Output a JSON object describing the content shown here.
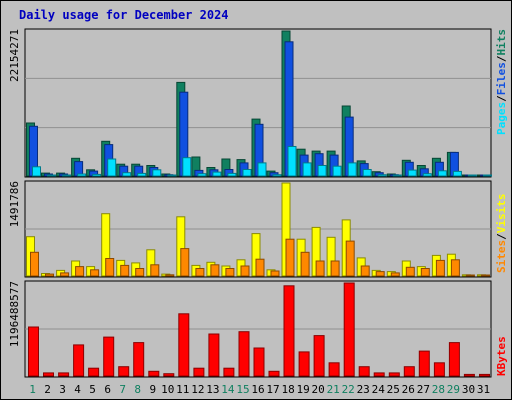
{
  "title": "Daily usage for December 2024",
  "colors": {
    "background": "#c0c0c0",
    "plot_background": "#c0c0c0",
    "pages": "#00e0ff",
    "files": "#1050e0",
    "hits": "#108060",
    "visits": "#ffff00",
    "sites": "#ff8800",
    "kbytes": "#ff0000",
    "title": "#0000c0",
    "weekend_label": "#108060",
    "weekday_label": "#000080"
  },
  "axis_max_labels": {
    "hits_panel": "22154271",
    "visits_panel": "1491786",
    "kbytes_panel": "1196488577"
  },
  "legend": {
    "pages": "Pages",
    "files": "Files",
    "hits": "Hits",
    "sites": "Sites",
    "visits": "Visits",
    "kbytes": "KBytes",
    "sep": "/"
  },
  "chart_data": [
    {
      "type": "bar",
      "title": "Daily usage for December 2024",
      "categories": [
        "1",
        "2",
        "3",
        "4",
        "5",
        "6",
        "7",
        "8",
        "9",
        "10",
        "11",
        "12",
        "13",
        "14",
        "15",
        "16",
        "17",
        "18",
        "19",
        "20",
        "21",
        "22",
        "23",
        "24",
        "25",
        "26",
        "27",
        "28",
        "29",
        "30",
        "31"
      ],
      "weekend_days": [
        "1",
        "7",
        "8",
        "14",
        "15",
        "21",
        "22",
        "28",
        "29"
      ],
      "ylim": [
        0,
        22154271
      ],
      "series": [
        {
          "name": "Hits",
          "values": [
            8100000,
            450000,
            450000,
            2700000,
            950000,
            5300000,
            1800000,
            1800000,
            1600000,
            300000,
            14300000,
            2900000,
            1300000,
            2600000,
            2500000,
            8700000,
            750000,
            22154271,
            4100000,
            3800000,
            3800000,
            10700000,
            2300000,
            650000,
            300000,
            2400000,
            1600000,
            2700000,
            3600000,
            150000,
            150000
          ]
        },
        {
          "name": "Files",
          "values": [
            7600000,
            300000,
            300000,
            2200000,
            750000,
            4800000,
            1500000,
            1500000,
            1300000,
            200000,
            12800000,
            850000,
            950000,
            1000000,
            2000000,
            7900000,
            500000,
            20500000,
            3200000,
            3400000,
            3200000,
            9000000,
            1900000,
            500000,
            200000,
            2100000,
            1100000,
            2100000,
            3600000,
            100000,
            100000
          ]
        },
        {
          "name": "Pages",
          "values": [
            1400000,
            100000,
            150000,
            300000,
            250000,
            2600000,
            500000,
            400000,
            950000,
            100000,
            2800000,
            350000,
            600000,
            400000,
            1000000,
            2000000,
            200000,
            4500000,
            2000000,
            1600000,
            1500000,
            2000000,
            1000000,
            200000,
            100000,
            900000,
            350000,
            800000,
            700000,
            50000,
            50000
          ]
        }
      ]
    },
    {
      "type": "bar",
      "categories": [
        "1",
        "2",
        "3",
        "4",
        "5",
        "6",
        "7",
        "8",
        "9",
        "10",
        "11",
        "12",
        "13",
        "14",
        "15",
        "16",
        "17",
        "18",
        "19",
        "20",
        "21",
        "22",
        "23",
        "24",
        "25",
        "26",
        "27",
        "28",
        "29",
        "30",
        "31"
      ],
      "ylim": [
        0,
        1491786
      ],
      "series": [
        {
          "name": "Visits",
          "values": [
            630000,
            40000,
            90000,
            240000,
            150000,
            1000000,
            250000,
            210000,
            420000,
            30000,
            950000,
            170000,
            220000,
            160000,
            260000,
            680000,
            100000,
            1491786,
            590000,
            780000,
            620000,
            900000,
            290000,
            90000,
            70000,
            240000,
            150000,
            330000,
            350000,
            20000,
            20000
          ]
        },
        {
          "name": "Sites",
          "values": [
            380000,
            30000,
            50000,
            150000,
            100000,
            280000,
            170000,
            120000,
            180000,
            20000,
            440000,
            120000,
            180000,
            120000,
            160000,
            270000,
            80000,
            590000,
            380000,
            240000,
            240000,
            560000,
            160000,
            70000,
            50000,
            140000,
            120000,
            250000,
            260000,
            10000,
            10000
          ]
        }
      ]
    },
    {
      "type": "bar",
      "categories": [
        "1",
        "2",
        "3",
        "4",
        "5",
        "6",
        "7",
        "8",
        "9",
        "10",
        "11",
        "12",
        "13",
        "14",
        "15",
        "16",
        "17",
        "18",
        "19",
        "20",
        "21",
        "22",
        "23",
        "24",
        "25",
        "26",
        "27",
        "28",
        "29",
        "30",
        "31"
      ],
      "ylim": [
        0,
        1196488577
      ],
      "series": [
        {
          "name": "KBytes",
          "values": [
            630000000,
            40000000,
            40000000,
            400000000,
            100000000,
            500000000,
            120000000,
            430000000,
            60000000,
            30000000,
            800000000,
            100000000,
            540000000,
            100000000,
            570000000,
            360000000,
            60000000,
            1160000000,
            310000000,
            520000000,
            170000000,
            1196488577,
            120000000,
            40000000,
            40000000,
            120000000,
            320000000,
            170000000,
            430000000,
            20000000,
            20000000
          ]
        }
      ]
    }
  ]
}
